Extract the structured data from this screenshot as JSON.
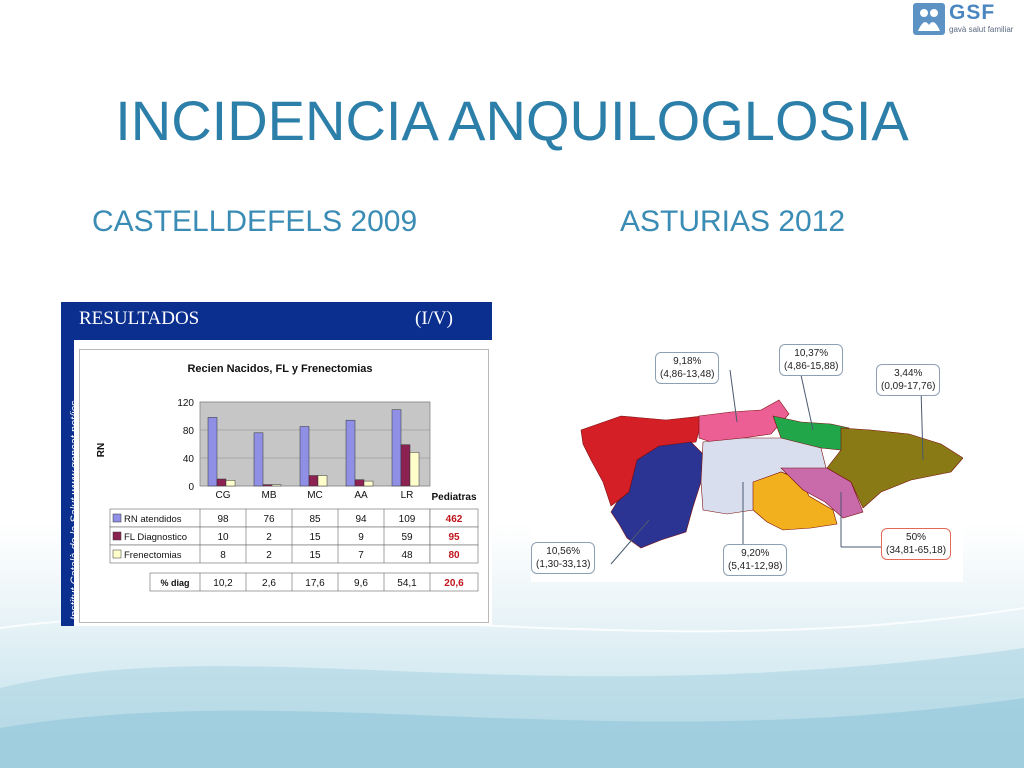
{
  "logo": {
    "name": "GSF",
    "tagline": "gavà salut familiar",
    "accent": "#5c93c4"
  },
  "slide": {
    "title": "INCIDENCIA  ANQUILOGLOSIA",
    "left_subtitle": "CASTELLDEFELS 2009",
    "right_subtitle": "ASTURIAS 2012"
  },
  "panel": {
    "header_left": "RESULTADOS",
    "header_right": "(I/V)",
    "side_text": "Institut Català de la Salut  www.gencat.net/ics"
  },
  "chart_data": {
    "type": "bar",
    "title": "Recien Nacidos, FL y Frenectomias",
    "ylabel": "RN",
    "ylim": [
      0,
      120
    ],
    "yticks": [
      0,
      40,
      80,
      120
    ],
    "categories": [
      "CG",
      "MB",
      "MC",
      "AA",
      "LR"
    ],
    "series": [
      {
        "name": "RN atendidos",
        "values": [
          98,
          76,
          85,
          94,
          109
        ],
        "color": "#8f8fe6"
      },
      {
        "name": "FL Diagnostico",
        "values": [
          10,
          2,
          15,
          9,
          59
        ],
        "color": "#8b2252"
      },
      {
        "name": "Frenectomias",
        "values": [
          8,
          2,
          15,
          7,
          48
        ],
        "color": "#ffffcc"
      }
    ],
    "totals_header": "Pediatras",
    "totals": [
      "462",
      "95",
      "80"
    ],
    "pct_label": "% diag",
    "pct_values": [
      "10,2",
      "2,6",
      "17,6",
      "9,6",
      "54,1"
    ],
    "pct_total": "20,6",
    "table_values": [
      [
        "98",
        "76",
        "85",
        "94",
        "109"
      ],
      [
        "10",
        "2",
        "15",
        "9",
        "59"
      ],
      [
        "8",
        "2",
        "15",
        "7",
        "48"
      ]
    ]
  },
  "map": {
    "callouts": [
      {
        "id": "west",
        "pct": "10,56%",
        "ci": "(1,30-33,13)"
      },
      {
        "id": "northwest",
        "pct": "9,18%",
        "ci": "(4,86-13,48)"
      },
      {
        "id": "north",
        "pct": "10,37%",
        "ci": "(4,86-15,88)"
      },
      {
        "id": "east",
        "pct": "3,44%",
        "ci": "(0,09-17,76)"
      },
      {
        "id": "center",
        "pct": "9,20%",
        "ci": "(5,41-12,98)"
      },
      {
        "id": "southeast",
        "pct": "50%",
        "ci": "(34,81-65,18)"
      }
    ],
    "region_colors": {
      "west": "#d41f26",
      "southwest": "#2b3393",
      "northwest": "#ec5f95",
      "north": "#22a64a",
      "center": "#d9deef",
      "south": "#f3b01e",
      "southeast": "#c96aab",
      "east": "#8a7a15"
    }
  }
}
